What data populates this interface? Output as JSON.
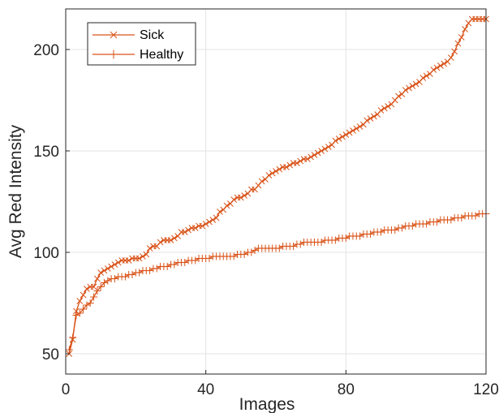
{
  "chart_data": {
    "type": "line",
    "title": "",
    "xlabel": "Images",
    "ylabel": "Avg Red Intensity",
    "xlim": [
      0,
      120
    ],
    "ylim": [
      40,
      220
    ],
    "xticks": [
      0,
      40,
      80,
      120
    ],
    "yticks": [
      50,
      100,
      150,
      200
    ],
    "grid": true,
    "legend_position": "top-left",
    "color": "#D95319",
    "series": [
      {
        "name": "Sick",
        "marker": "x",
        "x": [
          1,
          2,
          3,
          4,
          5,
          6,
          7,
          8,
          9,
          10,
          11,
          12,
          13,
          14,
          15,
          16,
          17,
          18,
          19,
          20,
          21,
          22,
          23,
          24,
          25,
          26,
          27,
          28,
          29,
          30,
          31,
          32,
          33,
          34,
          35,
          36,
          37,
          38,
          39,
          40,
          41,
          42,
          43,
          44,
          45,
          46,
          47,
          48,
          49,
          50,
          51,
          52,
          53,
          54,
          55,
          56,
          57,
          58,
          59,
          60,
          61,
          62,
          63,
          64,
          65,
          66,
          67,
          68,
          69,
          70,
          71,
          72,
          73,
          74,
          75,
          76,
          77,
          78,
          79,
          80,
          81,
          82,
          83,
          84,
          85,
          86,
          87,
          88,
          89,
          90,
          91,
          92,
          93,
          94,
          95,
          96,
          97,
          98,
          99,
          100,
          101,
          102,
          103,
          104,
          105,
          106,
          107,
          108,
          109,
          110,
          111,
          112,
          113,
          114,
          115,
          116,
          117,
          118,
          119,
          120
        ],
        "y": [
          50,
          57,
          71,
          76,
          79,
          82,
          83,
          83,
          87,
          90,
          91,
          92,
          93,
          94,
          95,
          96,
          96,
          96,
          97,
          97,
          97,
          98,
          99,
          102,
          103,
          103,
          105,
          106,
          106,
          106,
          107,
          108,
          110,
          110,
          111,
          112,
          112,
          113,
          113,
          114,
          115,
          116,
          117,
          120,
          121,
          123,
          124,
          126,
          127,
          127,
          128,
          129,
          131,
          131,
          133,
          135,
          136,
          138,
          139,
          140,
          141,
          142,
          142,
          143,
          144,
          144,
          145,
          146,
          146,
          147,
          148,
          149,
          150,
          151,
          152,
          153,
          155,
          156,
          157,
          158,
          159,
          160,
          161,
          162,
          163,
          165,
          166,
          167,
          168,
          170,
          171,
          172,
          173,
          175,
          177,
          178,
          180,
          181,
          182,
          183,
          184,
          186,
          187,
          188,
          190,
          191,
          192,
          193,
          194,
          196,
          199,
          203,
          206,
          210,
          213,
          215,
          215,
          215,
          215,
          215
        ]
      },
      {
        "name": "Healthy",
        "marker": "+",
        "x": [
          1,
          2,
          3,
          4,
          5,
          6,
          7,
          8,
          9,
          10,
          11,
          12,
          13,
          14,
          15,
          16,
          17,
          18,
          19,
          20,
          21,
          22,
          23,
          24,
          25,
          26,
          27,
          28,
          29,
          30,
          31,
          32,
          33,
          34,
          35,
          36,
          37,
          38,
          39,
          40,
          41,
          42,
          43,
          44,
          45,
          46,
          47,
          48,
          49,
          50,
          51,
          52,
          53,
          54,
          55,
          56,
          57,
          58,
          59,
          60,
          61,
          62,
          63,
          64,
          65,
          66,
          67,
          68,
          69,
          70,
          71,
          72,
          73,
          74,
          75,
          76,
          77,
          78,
          79,
          80,
          81,
          82,
          83,
          84,
          85,
          86,
          87,
          88,
          89,
          90,
          91,
          92,
          93,
          94,
          95,
          96,
          97,
          98,
          99,
          100,
          101,
          102,
          103,
          104,
          105,
          106,
          107,
          108,
          109,
          110,
          111,
          112,
          113,
          114,
          115,
          116,
          117,
          118,
          119,
          120
        ],
        "y": [
          52,
          58,
          69,
          70,
          72,
          74,
          75,
          78,
          81,
          83,
          85,
          86,
          87,
          87,
          88,
          88,
          88,
          89,
          89,
          90,
          90,
          91,
          91,
          91,
          92,
          92,
          93,
          93,
          93,
          94,
          94,
          95,
          95,
          95,
          96,
          96,
          96,
          97,
          97,
          97,
          97,
          98,
          98,
          98,
          98,
          98,
          98,
          98,
          99,
          99,
          99,
          100,
          100,
          101,
          102,
          102,
          102,
          102,
          102,
          102,
          102,
          103,
          103,
          103,
          103,
          104,
          104,
          105,
          105,
          105,
          105,
          105,
          105,
          106,
          106,
          106,
          106,
          107,
          107,
          107,
          108,
          108,
          108,
          108,
          109,
          109,
          109,
          110,
          110,
          110,
          111,
          111,
          111,
          111,
          112,
          112,
          113,
          113,
          113,
          114,
          114,
          114,
          114,
          115,
          115,
          115,
          116,
          116,
          116,
          116,
          117,
          117,
          117,
          118,
          118,
          118,
          118,
          119,
          119,
          119
        ]
      }
    ]
  }
}
